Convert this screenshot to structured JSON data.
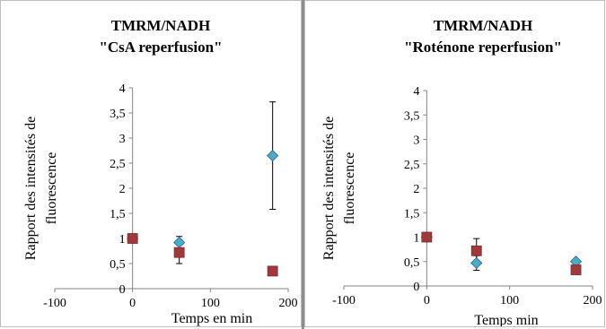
{
  "chart_data": [
    {
      "type": "scatter",
      "title_lines": [
        "TMRM/NADH",
        "\"CsA reperfusion\""
      ],
      "xlabel": "Temps en min",
      "ylabel_lines": [
        "Rapport des intensités de",
        "fluorescence"
      ],
      "xlim": [
        -100,
        200
      ],
      "ylim": [
        0,
        4
      ],
      "x_ticks": [
        -100,
        0,
        100,
        200
      ],
      "x_tick_labels": [
        "-100",
        "0",
        "100",
        "200"
      ],
      "y_ticks": [
        0,
        0.5,
        1,
        1.5,
        2,
        2.5,
        3,
        3.5,
        4
      ],
      "y_tick_labels": [
        "0",
        "0,5",
        "1",
        "1,5",
        "2",
        "2,5",
        "3",
        "3,5",
        "4"
      ],
      "grid": false,
      "legend": "none",
      "series": [
        {
          "marker": "diamond",
          "color": "#4bacc6",
          "edge_color": "#1f5f8b",
          "points": [
            {
              "x": 0,
              "y": 1.0,
              "err": 0
            },
            {
              "x": 60,
              "y": 0.92,
              "err": 0.12
            },
            {
              "x": 180,
              "y": 2.65,
              "err": 1.07
            }
          ]
        },
        {
          "marker": "square",
          "color": "#a0393c",
          "edge_color": "#7a2a2c",
          "points": [
            {
              "x": 0,
              "y": 1.0,
              "err": 0
            },
            {
              "x": 60,
              "y": 0.72,
              "err": 0.22
            },
            {
              "x": 180,
              "y": 0.35,
              "err": 0.05
            }
          ]
        }
      ]
    },
    {
      "type": "scatter",
      "title_lines": [
        "TMRM/NADH",
        "\"Roténone reperfusion\""
      ],
      "xlabel": "Temps min",
      "ylabel_lines": [
        "Rapport des intensités de",
        "fluorescence"
      ],
      "xlim": [
        -100,
        200
      ],
      "ylim": [
        0,
        4
      ],
      "x_ticks": [
        -100,
        0,
        100,
        200
      ],
      "x_tick_labels": [
        "-100",
        "0",
        "100",
        "200"
      ],
      "y_ticks": [
        0,
        0.5,
        1,
        1.5,
        2,
        2.5,
        3,
        3.5,
        4
      ],
      "y_tick_labels": [
        "0",
        "0,5",
        "1",
        "1,5",
        "2",
        "2,5",
        "3",
        "3,5",
        "4"
      ],
      "grid": false,
      "legend": "none",
      "series": [
        {
          "marker": "diamond",
          "color": "#4bacc6",
          "edge_color": "#1f5f8b",
          "points": [
            {
              "x": 0,
              "y": 1.0,
              "err": 0
            },
            {
              "x": 60,
              "y": 0.47,
              "err": 0.15
            },
            {
              "x": 180,
              "y": 0.5,
              "err": 0.03
            }
          ]
        },
        {
          "marker": "square",
          "color": "#a0393c",
          "edge_color": "#7a2a2c",
          "points": [
            {
              "x": 0,
              "y": 1.0,
              "err": 0
            },
            {
              "x": 60,
              "y": 0.72,
              "err": 0.25
            },
            {
              "x": 180,
              "y": 0.33,
              "err": 0.03
            }
          ]
        }
      ]
    }
  ]
}
